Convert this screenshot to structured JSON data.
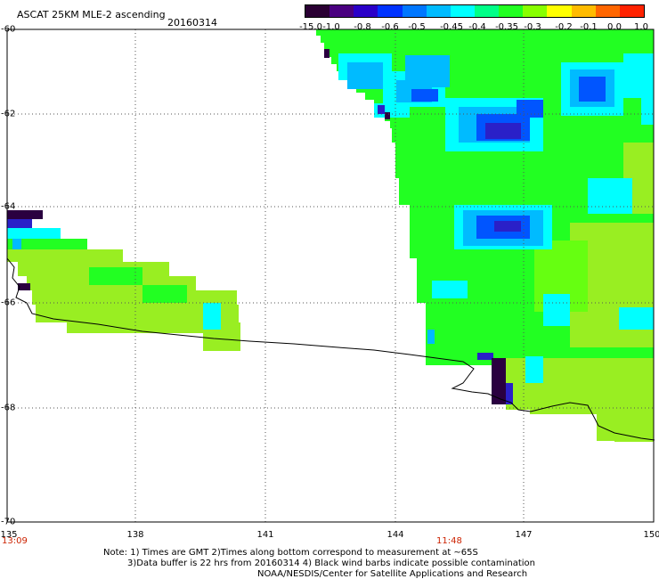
{
  "header": {
    "title": "ASCAT 25KM MLE-2 ascending",
    "date": "20160314"
  },
  "colorbar": {
    "tick_labels": [
      "-15.0",
      "-1.0",
      "-0.8",
      "-0.6",
      "-0.5",
      "-0.45",
      "-0.4",
      "-0.35",
      "-0.3",
      "-0.2",
      "-0.1",
      "0.0",
      "1.0"
    ],
    "colors": [
      "#2a0033",
      "#4a0080",
      "#2a00c8",
      "#0033ff",
      "#0077ff",
      "#00bbff",
      "#00ffff",
      "#00ff88",
      "#22ff22",
      "#88ff00",
      "#ffff00",
      "#ffbb00",
      "#ff6600",
      "#ff2200"
    ]
  },
  "axes": {
    "lat_labels": [
      "-60",
      "-62",
      "-64",
      "-66",
      "-68",
      "-70"
    ],
    "lon_labels": [
      "135",
      "138",
      "141",
      "144",
      "147",
      "150"
    ],
    "time_labels": [
      "13:09",
      "11:48"
    ]
  },
  "notes": {
    "line1": "Note: 1) Times are GMT 2)Times along bottom correspond to measurement at ~65S",
    "line2": "3)Data buffer is 22 hrs from 20160314 4) Black wind barbs indicate possible contamination",
    "line3": "NOAA/NESDIS/Center for Satellite Applications and Research"
  },
  "palette": {
    "lime": "#99ee22",
    "green": "#22ff22",
    "cyan": "#00ffff",
    "sky": "#00bbff",
    "blue": "#0055ff",
    "navy": "#2a20c8",
    "dark": "#2a0040",
    "grid": "#555555",
    "coast": "#000000",
    "time_label": "#cc2200"
  }
}
